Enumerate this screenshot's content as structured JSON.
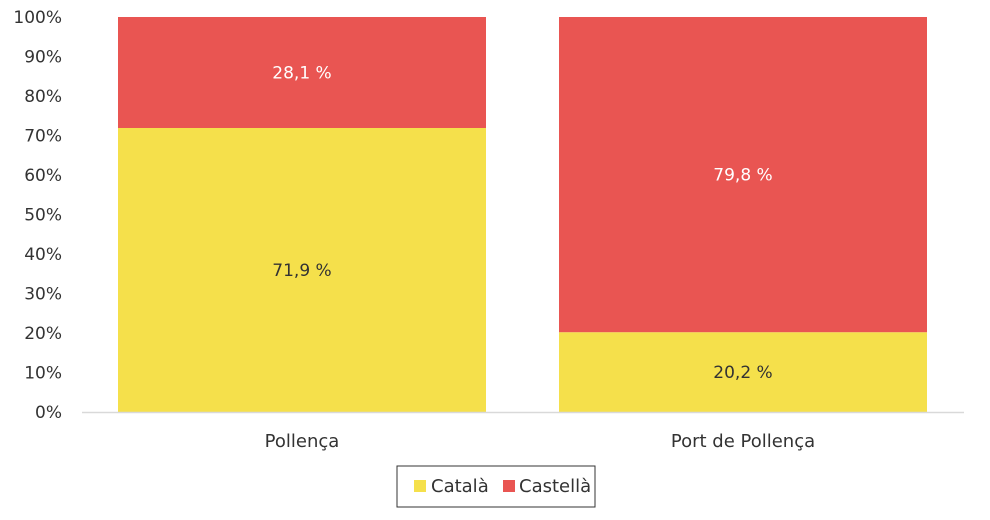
{
  "chart_data": {
    "type": "bar",
    "stacked": true,
    "categories": [
      "Pollença",
      "Port de Pollença"
    ],
    "series": [
      {
        "name": "Català",
        "values": [
          71.9,
          20.2
        ],
        "labels": [
          "71,9 %",
          "20,2 %"
        ],
        "color": "#F5E04B",
        "label_color": "#333333"
      },
      {
        "name": "Castellà",
        "values": [
          28.1,
          79.8
        ],
        "labels": [
          "28,1 %",
          "79,8 %"
        ],
        "color": "#E95552",
        "label_color": "#ffffff"
      }
    ],
    "ylim": [
      0,
      100
    ],
    "y_ticks": [
      0,
      10,
      20,
      30,
      40,
      50,
      60,
      70,
      80,
      90,
      100
    ],
    "y_tick_labels": [
      "0%",
      "10%",
      "20%",
      "30%",
      "40%",
      "50%",
      "60%",
      "70%",
      "80%",
      "90%",
      "100%"
    ],
    "grid": false,
    "legend_position": "bottom-center",
    "title": "",
    "xlabel": "",
    "ylabel": ""
  }
}
